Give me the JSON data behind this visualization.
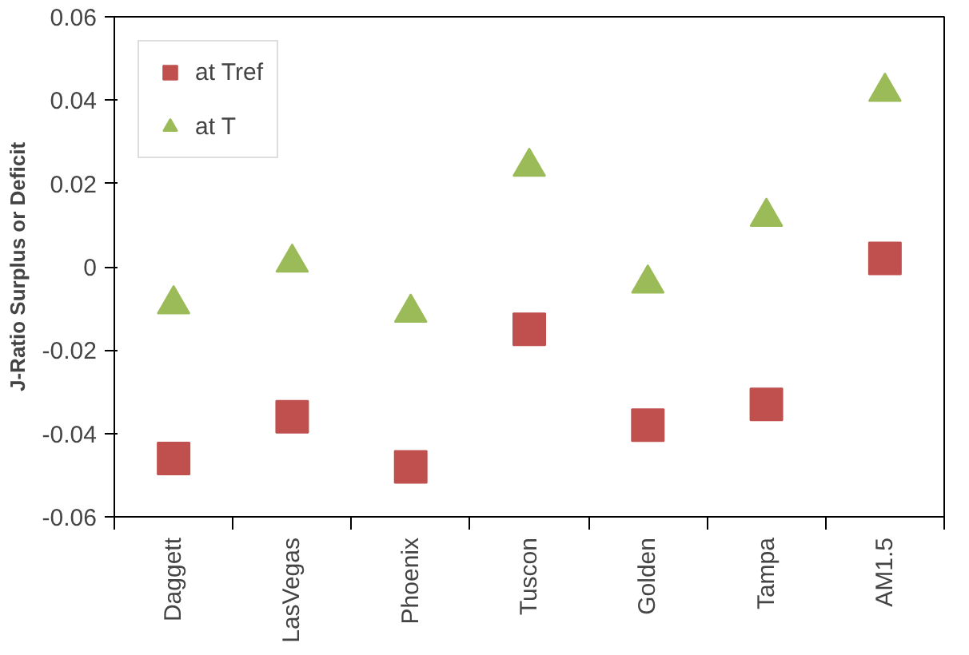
{
  "chart_data": {
    "type": "scatter",
    "ylabel": "J-Ratio Surplus or Deficit",
    "categories": [
      "Daggett",
      "LasVegas",
      "Phoenix",
      "Tuscon",
      "Golden",
      "Tampa",
      "AM1.5"
    ],
    "series": [
      {
        "name": "at Tref",
        "color": "#c0504d",
        "marker": "square",
        "values": [
          -0.046,
          -0.036,
          -0.048,
          -0.015,
          -0.038,
          -0.033,
          0.002
        ]
      },
      {
        "name": "at T",
        "color": "#9bbb59",
        "marker": "triangle",
        "values": [
          -0.009,
          0.001,
          -0.011,
          0.024,
          -0.004,
          0.012,
          0.042
        ]
      }
    ],
    "ylim": [
      -0.06,
      0.06
    ],
    "yticks": [
      {
        "value": -0.06,
        "label": "-0.06"
      },
      {
        "value": -0.04,
        "label": "-0.04"
      },
      {
        "value": -0.02,
        "label": "-0.02"
      },
      {
        "value": 0,
        "label": "0"
      },
      {
        "value": 0.02,
        "label": "0.02"
      },
      {
        "value": 0.04,
        "label": "0.04"
      },
      {
        "value": 0.06,
        "label": "0.06"
      }
    ],
    "grid": false,
    "legend": "top left"
  }
}
